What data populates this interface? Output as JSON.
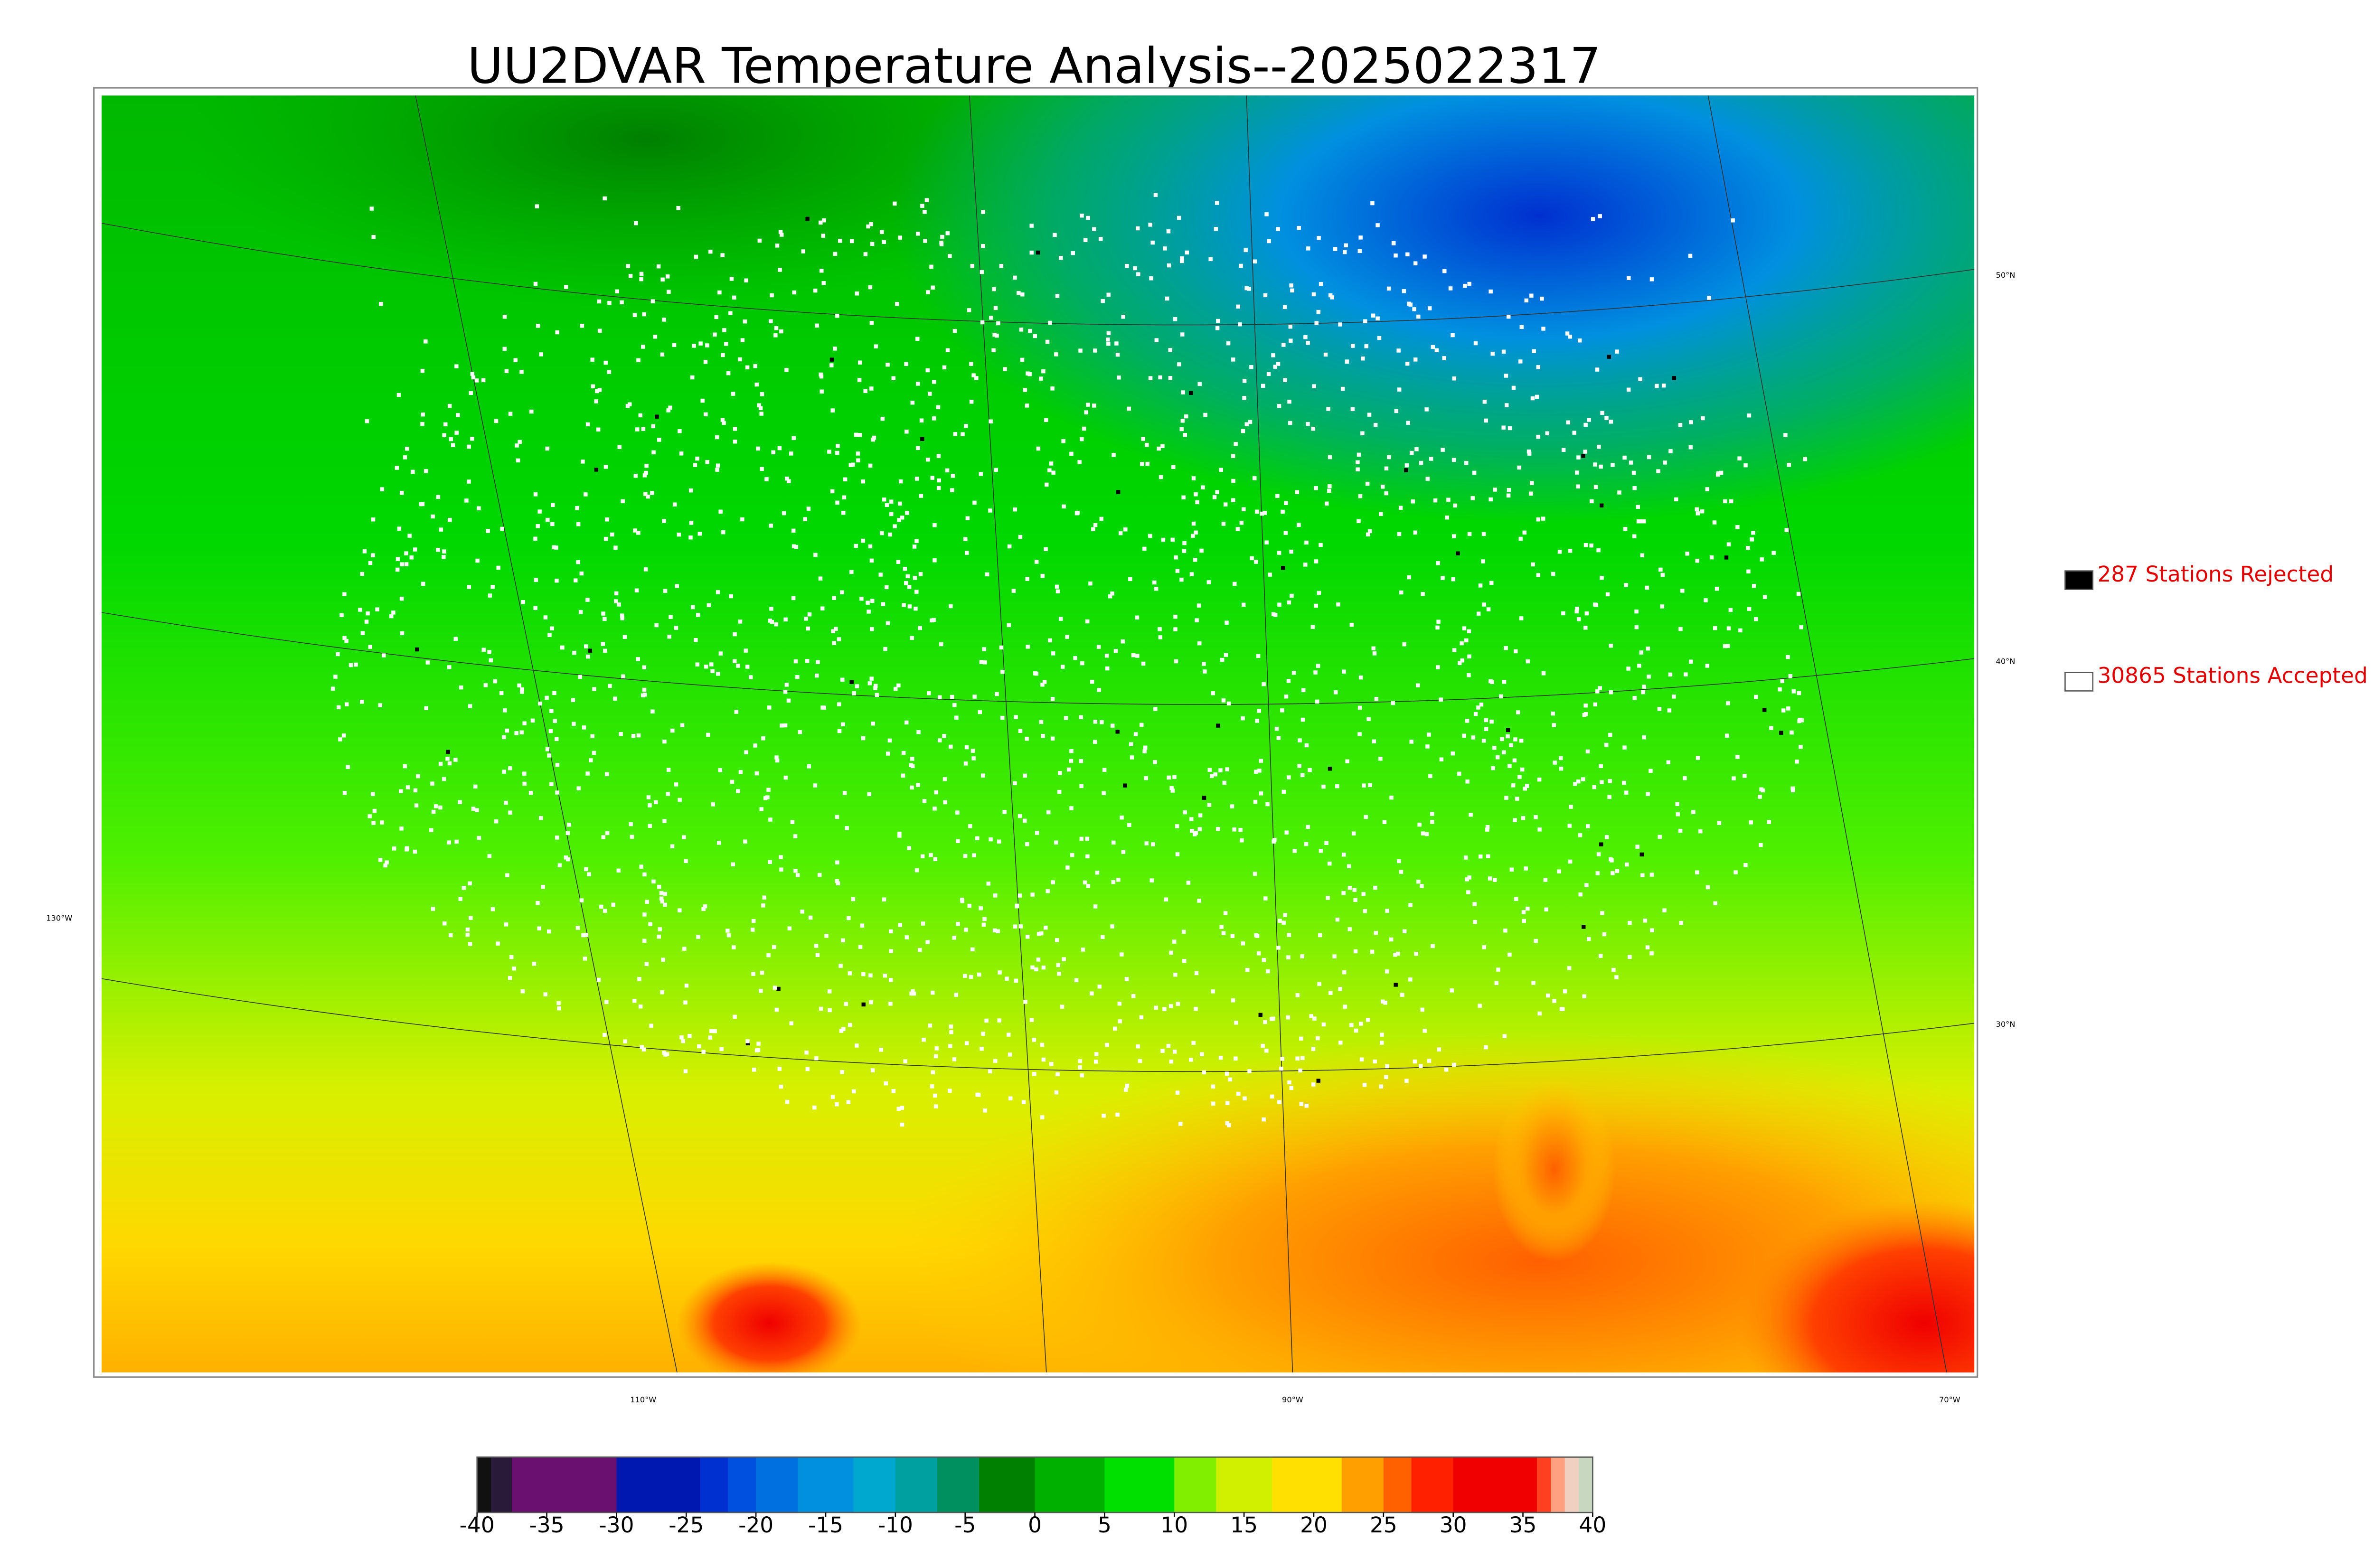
{
  "title": "UU2DVAR Temperature Analysis--2025022317",
  "lat_labels": [
    "50°N",
    "40°N",
    "30°N"
  ],
  "lon_labels": [
    "130°W",
    "110°W",
    "90°W",
    "70°W"
  ],
  "legend": [
    {
      "label": "287 Stations Rejected",
      "color": "#000000"
    },
    {
      "label": "30865 Stations Accepted",
      "color": "#ffffff"
    }
  ],
  "colorbar": {
    "range": [
      -40,
      40
    ],
    "ticks": [
      -40,
      -35,
      -30,
      -25,
      -20,
      -15,
      -10,
      -5,
      0,
      5,
      10,
      15,
      20,
      25,
      30,
      35,
      40
    ],
    "segments": [
      {
        "from": -40,
        "to": -39,
        "color": "#111111"
      },
      {
        "from": -39,
        "to": -37.5,
        "color": "#2a1a3a"
      },
      {
        "from": -37.5,
        "to": -30,
        "color": "#6a1070"
      },
      {
        "from": -30,
        "to": -24,
        "color": "#0018b0"
      },
      {
        "from": -24,
        "to": -22,
        "color": "#0030d0"
      },
      {
        "from": -22,
        "to": -20,
        "color": "#0050e0"
      },
      {
        "from": -20,
        "to": -17,
        "color": "#0070e0"
      },
      {
        "from": -17,
        "to": -13,
        "color": "#0090e0"
      },
      {
        "from": -13,
        "to": -10,
        "color": "#00a8d0"
      },
      {
        "from": -10,
        "to": -7,
        "color": "#00a0a0"
      },
      {
        "from": -7,
        "to": -4,
        "color": "#009060"
      },
      {
        "from": -4,
        "to": 0,
        "color": "#008000"
      },
      {
        "from": 0,
        "to": 5,
        "color": "#00b000"
      },
      {
        "from": 5,
        "to": 10,
        "color": "#00e000"
      },
      {
        "from": 10,
        "to": 13,
        "color": "#80f000"
      },
      {
        "from": 13,
        "to": 17,
        "color": "#d0f000"
      },
      {
        "from": 17,
        "to": 22,
        "color": "#ffe000"
      },
      {
        "from": 22,
        "to": 25,
        "color": "#ffa000"
      },
      {
        "from": 25,
        "to": 27,
        "color": "#ff6000"
      },
      {
        "from": 27,
        "to": 30,
        "color": "#ff2000"
      },
      {
        "from": 30,
        "to": 36,
        "color": "#f00000"
      },
      {
        "from": 36,
        "to": 37,
        "color": "#ff4020"
      },
      {
        "from": 37,
        "to": 38,
        "color": "#ffa080"
      },
      {
        "from": 38,
        "to": 39,
        "color": "#f0d0c0"
      },
      {
        "from": 39,
        "to": 40,
        "color": "#c8d8c0"
      }
    ]
  }
}
